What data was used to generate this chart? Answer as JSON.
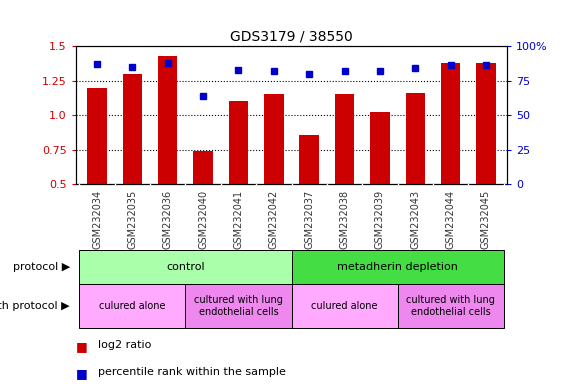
{
  "title": "GDS3179 / 38550",
  "samples": [
    "GSM232034",
    "GSM232035",
    "GSM232036",
    "GSM232040",
    "GSM232041",
    "GSM232042",
    "GSM232037",
    "GSM232038",
    "GSM232039",
    "GSM232043",
    "GSM232044",
    "GSM232045"
  ],
  "log2_ratio": [
    1.2,
    1.3,
    1.43,
    0.74,
    1.1,
    1.15,
    0.86,
    1.15,
    1.02,
    1.16,
    1.38,
    1.38
  ],
  "percentile_rank": [
    87,
    85,
    88,
    64,
    83,
    82,
    80,
    82,
    82,
    84,
    86,
    86
  ],
  "bar_color": "#cc0000",
  "dot_color": "#0000cc",
  "ylim_left": [
    0.5,
    1.5
  ],
  "ylim_right": [
    0,
    100
  ],
  "yticks_left": [
    0.5,
    0.75,
    1.0,
    1.25,
    1.5
  ],
  "yticks_right": [
    0,
    25,
    50,
    75,
    100
  ],
  "ytick_labels_right": [
    "0",
    "25",
    "50",
    "75",
    "100%"
  ],
  "grid_lines": [
    0.5,
    0.75,
    1.0,
    1.25,
    1.5
  ],
  "protocol_labels": [
    {
      "text": "control",
      "start": 0,
      "end": 6,
      "color": "#aaffaa"
    },
    {
      "text": "metadherin depletion",
      "start": 6,
      "end": 12,
      "color": "#44dd44"
    }
  ],
  "growth_protocol_labels": [
    {
      "text": "culured alone",
      "start": 0,
      "end": 3,
      "color": "#ffaaff"
    },
    {
      "text": "cultured with lung\nendothelial cells",
      "start": 3,
      "end": 6,
      "color": "#ee88ee"
    },
    {
      "text": "culured alone",
      "start": 6,
      "end": 9,
      "color": "#ffaaff"
    },
    {
      "text": "cultured with lung\nendothelial cells",
      "start": 9,
      "end": 12,
      "color": "#ee88ee"
    }
  ],
  "xticklabel_color": "#333333",
  "left_label_color": "#cc0000",
  "right_label_color": "#0000cc",
  "protocol_row_label": "protocol",
  "growth_protocol_row_label": "growth protocol",
  "legend_log2": "log2 ratio",
  "legend_percentile": "percentile rank within the sample"
}
